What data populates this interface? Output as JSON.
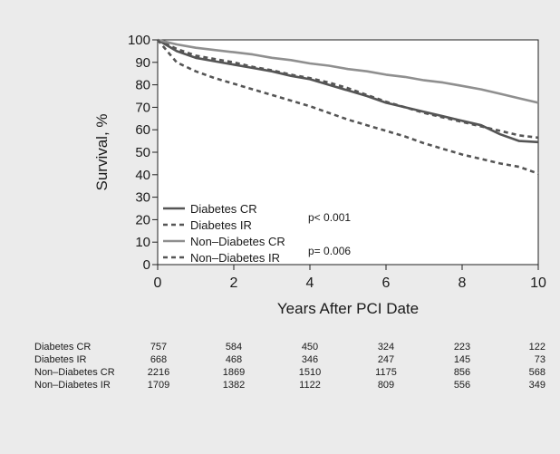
{
  "chart_data": {
    "type": "line",
    "xlabel": "Years After PCI Date",
    "ylabel": "Survival, %",
    "xlim": [
      0,
      10
    ],
    "ylim": [
      0,
      100
    ],
    "xticks": [
      0,
      2,
      4,
      6,
      8,
      10
    ],
    "yticks": [
      0,
      10,
      20,
      30,
      40,
      50,
      60,
      70,
      80,
      90,
      100
    ],
    "grid": false,
    "legend_position": "bottom-left",
    "annotations": [
      "p< 0.001",
      "p= 0.006"
    ],
    "series": [
      {
        "name": "Diabetes CR",
        "style": "solid",
        "color": "#555555",
        "x": [
          0,
          0.5,
          1,
          1.5,
          2,
          2.5,
          3,
          3.5,
          4,
          4.5,
          5,
          5.5,
          6,
          6.5,
          7,
          7.5,
          8,
          8.5,
          9,
          9.5,
          10
        ],
        "y": [
          100,
          95,
          92,
          90.5,
          89,
          87.5,
          86,
          84,
          82.5,
          80,
          77.5,
          75,
          72,
          70,
          68,
          66,
          64,
          62,
          58,
          55,
          54.5
        ]
      },
      {
        "name": "Diabetes IR",
        "style": "dashed",
        "color": "#555555",
        "x": [
          0,
          0.5,
          1,
          1.5,
          2,
          2.5,
          3,
          3.5,
          4,
          4.5,
          5,
          5.5,
          6,
          6.5,
          7,
          7.5,
          8,
          8.5,
          9,
          9.5,
          10
        ],
        "y": [
          100,
          96,
          93,
          91.5,
          90,
          88,
          86.5,
          84.5,
          83,
          81,
          78.5,
          75.5,
          72.5,
          70,
          67.5,
          65.5,
          63.5,
          61.5,
          59.5,
          57.5,
          56.5
        ]
      },
      {
        "name": "Non–Diabetes CR",
        "style": "solid",
        "color": "#8f8f8f",
        "x": [
          0,
          0.5,
          1,
          1.5,
          2,
          2.5,
          3,
          3.5,
          4,
          4.5,
          5,
          5.5,
          6,
          6.5,
          7,
          7.5,
          8,
          8.5,
          9,
          9.5,
          10
        ],
        "y": [
          100,
          98,
          96.5,
          95.5,
          94.5,
          93.5,
          92,
          91,
          89.5,
          88.5,
          87,
          86,
          84.5,
          83.5,
          82,
          81,
          79.5,
          78,
          76,
          74,
          72
        ]
      },
      {
        "name": "Non–Diabetes IR",
        "style": "dashed",
        "color": "#555555",
        "x": [
          0,
          0.5,
          1,
          1.5,
          2,
          2.5,
          3,
          3.5,
          4,
          4.5,
          5,
          5.5,
          6,
          6.5,
          7,
          7.5,
          8,
          8.5,
          9,
          9.5,
          10
        ],
        "y": [
          100,
          90,
          86,
          83,
          80.5,
          78,
          75.5,
          73,
          70.5,
          67.5,
          64.5,
          62,
          59.5,
          57,
          54,
          51.5,
          49,
          47,
          45,
          43.5,
          40.5
        ]
      }
    ],
    "risk_table": {
      "time_points": [
        0,
        2,
        4,
        6,
        8,
        10
      ],
      "rows": [
        {
          "label": "Diabetes CR",
          "counts": [
            757,
            584,
            450,
            324,
            223,
            122
          ]
        },
        {
          "label": "Diabetes IR",
          "counts": [
            668,
            468,
            346,
            247,
            145,
            73
          ]
        },
        {
          "label": "Non–Diabetes CR",
          "counts": [
            2216,
            1869,
            1510,
            1175,
            856,
            568
          ]
        },
        {
          "label": "Non–Diabetes IR",
          "counts": [
            1709,
            1382,
            1122,
            809,
            556,
            349
          ]
        }
      ]
    }
  }
}
